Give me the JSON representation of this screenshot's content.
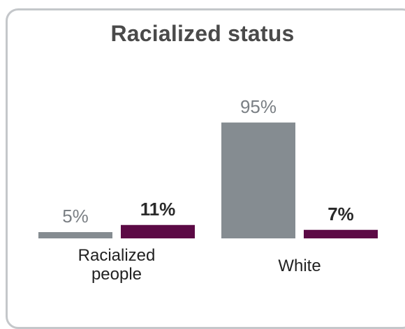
{
  "chart_data": {
    "type": "bar",
    "title": "Racialized status",
    "categories": [
      "Racialized\npeople",
      "White"
    ],
    "series": [
      {
        "values": [
          5,
          95
        ],
        "labels": [
          "5%",
          "95%"
        ],
        "color": "#858c91",
        "label_weight": "normal"
      },
      {
        "values": [
          11,
          7
        ],
        "labels": [
          "11%",
          "7%"
        ],
        "color": "#5c0a45",
        "label_weight": "bold"
      }
    ],
    "ylim": [
      0,
      100
    ],
    "grid": false,
    "legend": "none"
  }
}
